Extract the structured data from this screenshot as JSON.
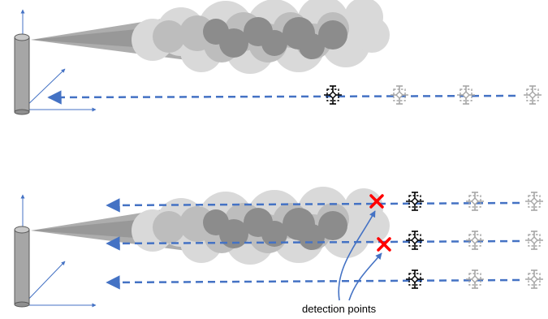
{
  "labels": {
    "detection_points": "detection points"
  },
  "colors": {
    "beam": "#4472c4",
    "axis": "#4472c4",
    "stack_fill": "#a6a6a6",
    "stack_stroke": "#595959",
    "plume_dark": "#8c8c8c",
    "plume_light": "#d9d9d9",
    "detector_active": "#000000",
    "detector_inactive": "#a6a6a6",
    "cross": "#ff0000"
  },
  "icons": {
    "detector": "drone-detector-icon",
    "cross": "x-mark-icon",
    "stack": "smokestack-icon",
    "plume": "smoke-plume-icon"
  }
}
